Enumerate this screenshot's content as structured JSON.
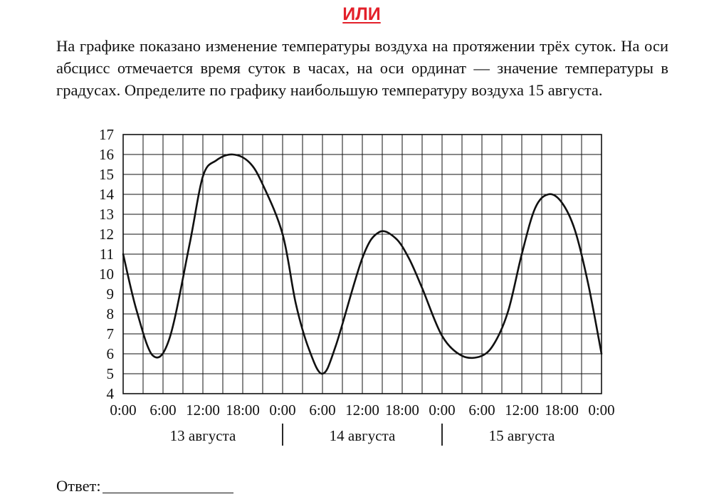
{
  "heading": "ИЛИ",
  "task_text": "На графике показано изменение температуры воздуха на протяжении трёх суток. На оси абсцисс отмечается время суток в часах, на оси ординат — значение температуры в градусах. Определите по графику наибольшую температуру воздуха 15 августа.",
  "answer_label": "Ответ:",
  "chart_data": {
    "type": "line",
    "x_unit": "hours",
    "xlim": [
      0,
      72
    ],
    "ylim": [
      4,
      17
    ],
    "grid": true,
    "x_grid_step": 3,
    "y_tick_step": 1,
    "x_tick_labels": [
      "0:00",
      "6:00",
      "12:00",
      "18:00",
      "0:00",
      "6:00",
      "12:00",
      "18:00",
      "0:00",
      "6:00",
      "12:00",
      "18:00",
      "0:00"
    ],
    "y_tick_labels": [
      "4",
      "5",
      "6",
      "7",
      "8",
      "9",
      "10",
      "11",
      "12",
      "13",
      "14",
      "15",
      "16",
      "17"
    ],
    "day_labels": [
      "13 августа",
      "14 августа",
      "15 августа"
    ],
    "series": [
      {
        "x": [
          0,
          2,
          4.5,
          7,
          10,
          12,
          14,
          16.5,
          19,
          21,
          24,
          26,
          28,
          30,
          32,
          36,
          38.5,
          41,
          43,
          45,
          48,
          51,
          54,
          56,
          58,
          60,
          62,
          64,
          66,
          68,
          70,
          72
        ],
        "y": [
          11,
          8.2,
          5.9,
          6.8,
          11.5,
          14.9,
          15.7,
          16,
          15.6,
          14.5,
          12,
          8.5,
          6.2,
          5,
          6.4,
          10.8,
          12.1,
          11.8,
          10.8,
          9.3,
          6.9,
          5.9,
          5.9,
          6.6,
          8.2,
          11,
          13.3,
          14,
          13.6,
          12.2,
          9.5,
          6
        ]
      }
    ]
  }
}
